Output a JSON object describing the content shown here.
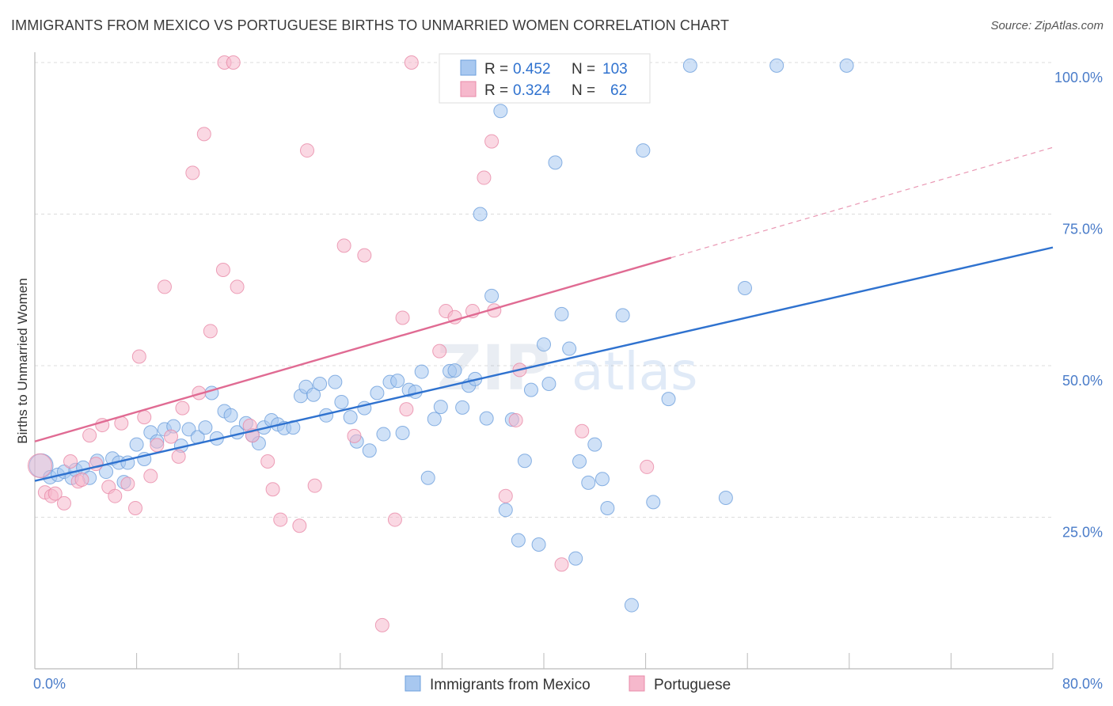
{
  "header": {
    "title": "IMMIGRANTS FROM MEXICO VS PORTUGUESE BIRTHS TO UNMARRIED WOMEN CORRELATION CHART",
    "source": "Source: ZipAtlas.com"
  },
  "watermark": {
    "zip": "ZIP",
    "atlas": "atlas"
  },
  "stats_legend": [
    {
      "r_label": "R =",
      "r_value": "0.452",
      "n_label": "N =",
      "n_value": "103"
    },
    {
      "r_label": "R =",
      "r_value": "0.324",
      "n_label": "N =",
      "n_value": "62"
    }
  ],
  "chart_data": {
    "type": "scatter",
    "title": "IMMIGRANTS FROM MEXICO VS PORTUGUESE BIRTHS TO UNMARRIED WOMEN CORRELATION CHART",
    "xlabel": "",
    "ylabel": "Births to Unmarried Women",
    "xlim": [
      0,
      80
    ],
    "ylim": [
      0,
      100
    ],
    "x_tick_labels": [
      "0.0%",
      "80.0%"
    ],
    "y_ticks": [
      25,
      50,
      75,
      100
    ],
    "y_tick_labels": [
      "25.0%",
      "50.0%",
      "75.0%",
      "100.0%"
    ],
    "grid": true,
    "legend_position": "bottom",
    "colors": {
      "mexico_fill": "#a8c8f0",
      "mexico_stroke": "#6d9fdc",
      "mexico_line": "#2f72cf",
      "portuguese_fill": "#f6b8cc",
      "portuguese_stroke": "#e88aa8",
      "portuguese_line": "#e06b93",
      "tick_label": "#4a7cc9",
      "grid": "#dcdcdc"
    },
    "series": [
      {
        "name": "Immigrants from Mexico",
        "r": 0.452,
        "n": 103,
        "trend": {
          "x": [
            0,
            80
          ],
          "y": [
            31,
            69.5
          ],
          "dashed_after": null
        },
        "points": [
          [
            0.5,
            33.5
          ],
          [
            1.2,
            31.6
          ],
          [
            1.8,
            32
          ],
          [
            2.3,
            32.5
          ],
          [
            2.9,
            31.5
          ],
          [
            3.2,
            32.8
          ],
          [
            3.8,
            33.2
          ],
          [
            4.3,
            31.5
          ],
          [
            4.9,
            34.3
          ],
          [
            5.6,
            32.5
          ],
          [
            6.1,
            34.7
          ],
          [
            6.6,
            34
          ],
          [
            7.0,
            30.8
          ],
          [
            7.3,
            34
          ],
          [
            8.0,
            37
          ],
          [
            8.6,
            34.6
          ],
          [
            9.1,
            39
          ],
          [
            9.6,
            37.5
          ],
          [
            10.2,
            39.5
          ],
          [
            10.9,
            40
          ],
          [
            11.5,
            36.8
          ],
          [
            12.1,
            39.5
          ],
          [
            12.8,
            38.2
          ],
          [
            13.4,
            39.8
          ],
          [
            13.9,
            45.5
          ],
          [
            14.3,
            38
          ],
          [
            14.9,
            42.5
          ],
          [
            15.4,
            41.8
          ],
          [
            15.9,
            39
          ],
          [
            16.6,
            40.5
          ],
          [
            17.1,
            38.5
          ],
          [
            17.6,
            37.2
          ],
          [
            18.0,
            39.8
          ],
          [
            18.6,
            41
          ],
          [
            19.1,
            40.3
          ],
          [
            19.6,
            39.7
          ],
          [
            20.3,
            39.8
          ],
          [
            20.9,
            45
          ],
          [
            21.3,
            46.5
          ],
          [
            21.9,
            45.2
          ],
          [
            22.4,
            47
          ],
          [
            22.9,
            41.8
          ],
          [
            23.6,
            47.3
          ],
          [
            24.1,
            44
          ],
          [
            24.8,
            41.5
          ],
          [
            25.3,
            37.5
          ],
          [
            25.9,
            43
          ],
          [
            26.3,
            36
          ],
          [
            26.9,
            45.5
          ],
          [
            27.4,
            38.7
          ],
          [
            27.9,
            47.3
          ],
          [
            28.5,
            47.5
          ],
          [
            28.9,
            38.9
          ],
          [
            29.4,
            46
          ],
          [
            29.9,
            45.7
          ],
          [
            30.4,
            49
          ],
          [
            30.9,
            31.5
          ],
          [
            31.4,
            41.2
          ],
          [
            31.9,
            43.2
          ],
          [
            32.6,
            49.1
          ],
          [
            33.0,
            49.2
          ],
          [
            33.6,
            43.1
          ],
          [
            34.1,
            46.7
          ],
          [
            34.6,
            47.8
          ],
          [
            35.0,
            75
          ],
          [
            35.5,
            41.3
          ],
          [
            35.9,
            61.5
          ],
          [
            36.6,
            92
          ],
          [
            37.0,
            26.2
          ],
          [
            37.5,
            41.1
          ],
          [
            38.0,
            21.2
          ],
          [
            38.5,
            34.3
          ],
          [
            39.0,
            46
          ],
          [
            39.6,
            20.5
          ],
          [
            40.0,
            53.5
          ],
          [
            40.4,
            47
          ],
          [
            40.9,
            83.5
          ],
          [
            41.4,
            58.5
          ],
          [
            42.0,
            52.8
          ],
          [
            42.5,
            18.2
          ],
          [
            42.8,
            34.2
          ],
          [
            43.5,
            30.7
          ],
          [
            44.0,
            37
          ],
          [
            44.6,
            31.3
          ],
          [
            45.0,
            26.5
          ],
          [
            45.6,
            99.5
          ],
          [
            46.2,
            58.3
          ],
          [
            46.9,
            10.5
          ],
          [
            47.8,
            85.5
          ],
          [
            48.6,
            27.5
          ],
          [
            49.8,
            44.5
          ],
          [
            51.5,
            99.5
          ],
          [
            54.3,
            28.2
          ],
          [
            55.8,
            62.8
          ],
          [
            58.3,
            99.5
          ],
          [
            63.8,
            99.5
          ]
        ]
      },
      {
        "name": "Portuguese",
        "r": 0.324,
        "n": 62,
        "trend": {
          "x": [
            0,
            80
          ],
          "y": [
            37.5,
            86
          ],
          "dashed_after": 50
        },
        "points": [
          [
            0.4,
            33.5
          ],
          [
            0.8,
            29.1
          ],
          [
            1.3,
            28.5
          ],
          [
            1.6,
            28.9
          ],
          [
            2.3,
            27.3
          ],
          [
            2.8,
            34.2
          ],
          [
            3.4,
            30.9
          ],
          [
            3.7,
            31.2
          ],
          [
            4.3,
            38.5
          ],
          [
            4.8,
            33.8
          ],
          [
            5.3,
            40.2
          ],
          [
            5.8,
            30
          ],
          [
            6.3,
            28.5
          ],
          [
            6.8,
            40.5
          ],
          [
            7.3,
            30.5
          ],
          [
            7.9,
            26.5
          ],
          [
            8.2,
            51.5
          ],
          [
            8.6,
            41.5
          ],
          [
            9.1,
            31.8
          ],
          [
            9.6,
            36.9
          ],
          [
            10.2,
            63
          ],
          [
            10.7,
            38.3
          ],
          [
            11.3,
            35
          ],
          [
            11.6,
            43
          ],
          [
            12.4,
            81.8
          ],
          [
            12.9,
            45.5
          ],
          [
            13.3,
            88.2
          ],
          [
            13.8,
            55.7
          ],
          [
            14.8,
            65.8
          ],
          [
            14.9,
            100
          ],
          [
            15.6,
            100
          ],
          [
            15.9,
            63
          ],
          [
            17.1,
            38.5
          ],
          [
            18.3,
            34.2
          ],
          [
            18.7,
            29.6
          ],
          [
            19.3,
            24.6
          ],
          [
            20.8,
            23.6
          ],
          [
            21.4,
            85.5
          ],
          [
            22.0,
            30.2
          ],
          [
            24.3,
            69.8
          ],
          [
            25.9,
            68.2
          ],
          [
            27.3,
            7.2
          ],
          [
            28.3,
            24.6
          ],
          [
            28.9,
            57.9
          ],
          [
            29.2,
            42.8
          ],
          [
            29.6,
            100
          ],
          [
            31.8,
            52.4
          ],
          [
            32.3,
            59
          ],
          [
            33.0,
            58
          ],
          [
            33.9,
            100
          ],
          [
            34.4,
            59
          ],
          [
            35.3,
            81
          ],
          [
            35.9,
            87
          ],
          [
            37.0,
            28.5
          ],
          [
            37.8,
            41
          ],
          [
            38.1,
            49.3
          ],
          [
            41.4,
            17.2
          ],
          [
            43.0,
            39.2
          ],
          [
            48.1,
            33.3
          ],
          [
            36.1,
            59.1
          ],
          [
            16.9,
            40.1
          ],
          [
            25.1,
            38.4
          ]
        ]
      }
    ]
  },
  "bottom_legend": [
    {
      "label": "Immigrants from Mexico"
    },
    {
      "label": "Portuguese"
    }
  ]
}
